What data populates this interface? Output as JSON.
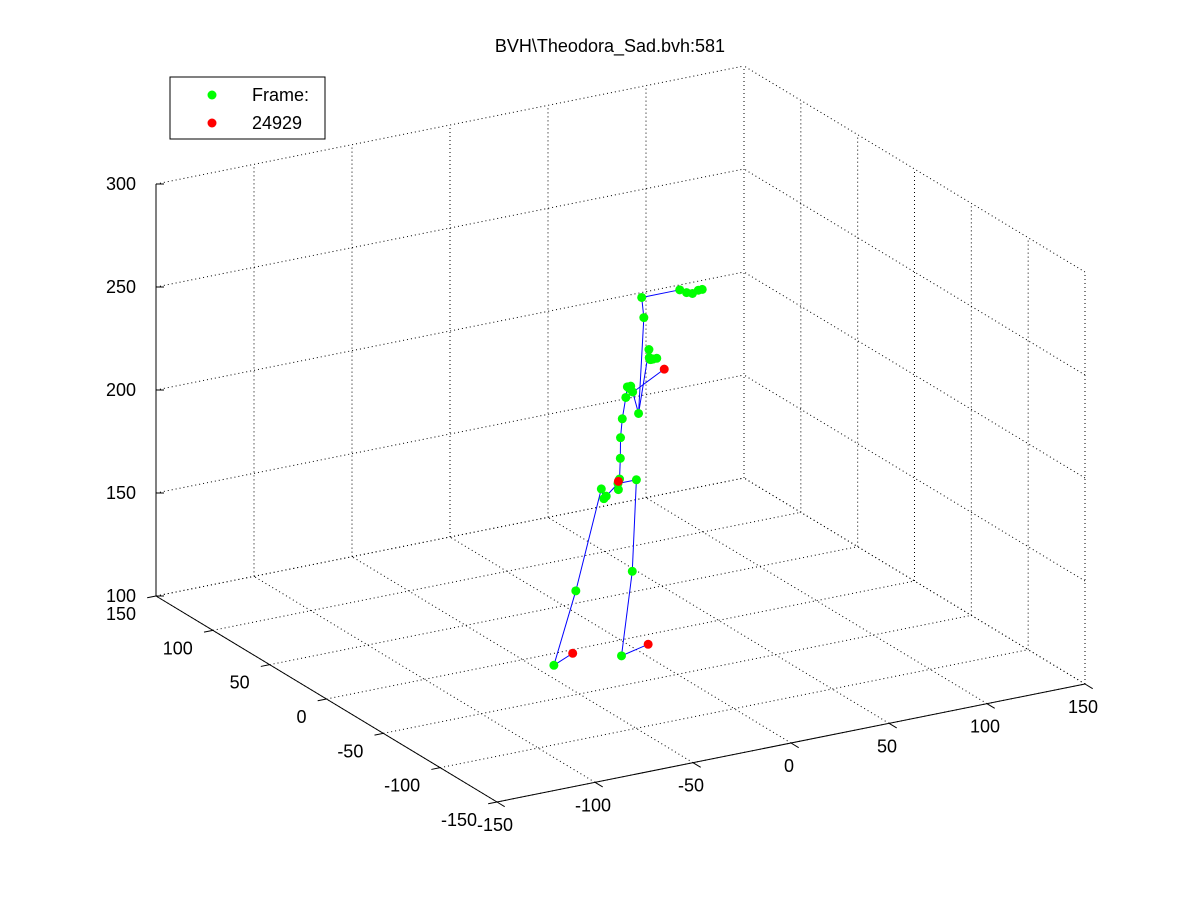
{
  "chart_data": {
    "type": "scatter",
    "title": "BVH\\Theodora_Sad.bvh:581",
    "projection": "3d",
    "grid": true,
    "legend_position": "top-left",
    "xlim": [
      -150,
      150
    ],
    "ylim": [
      -150,
      150
    ],
    "zlim": [
      100,
      300
    ],
    "x_ticks": [
      "-150",
      "-100",
      "-50",
      "0",
      "50",
      "100",
      "150"
    ],
    "y_ticks": [
      "-150",
      "-100",
      "-50",
      "0",
      "50",
      "100",
      "150"
    ],
    "z_ticks": [
      "100",
      "150",
      "200",
      "250",
      "300"
    ],
    "legend": [
      {
        "label": "Frame:",
        "color": "#00ff00"
      },
      {
        "label": "24929",
        "color": "#ff0000"
      }
    ],
    "colors": {
      "joints": "#00ff00",
      "end_sites": "#ff0000",
      "bones": "#0000ff"
    },
    "series": [
      {
        "name": "Frame:",
        "color": "#00ff00",
        "points": [
          {
            "x": -1.0,
            "y": 0.5,
            "z": 176
          },
          {
            "x": -0.8,
            "y": 0.5,
            "z": 173
          },
          {
            "x": -0.2,
            "y": 0.5,
            "z": 178
          },
          {
            "x": 0.2,
            "y": 0.5,
            "z": 188
          },
          {
            "x": 0.3,
            "y": 0.5,
            "z": 198
          },
          {
            "x": 1.2,
            "y": 0.5,
            "z": 207
          },
          {
            "x": 3.0,
            "y": 0.5,
            "z": 217
          },
          {
            "x": 3.8,
            "y": 0.5,
            "z": 222
          },
          {
            "x": 4.8,
            "y": 0.5,
            "z": 221
          },
          {
            "x": 5.5,
            "y": 0.5,
            "z": 222
          },
          {
            "x": 6.5,
            "y": 0.5,
            "z": 219
          },
          {
            "x": 9.5,
            "y": 0.5,
            "z": 208
          },
          {
            "x": 14.8,
            "y": 0.5,
            "z": 238
          },
          {
            "x": 15.0,
            "y": 0.5,
            "z": 234
          },
          {
            "x": 15.0,
            "y": 0.5,
            "z": 234
          },
          {
            "x": 17.0,
            "y": 0.5,
            "z": 233
          },
          {
            "x": 15.5,
            "y": 0.5,
            "z": 233
          },
          {
            "x": 16.1,
            "y": 0.5,
            "z": 233
          },
          {
            "x": 16.6,
            "y": 0.5,
            "z": 233
          },
          {
            "x": 18.8,
            "y": 0.5,
            "z": 233
          },
          {
            "x": 12.2,
            "y": 0.5,
            "z": 254
          },
          {
            "x": 11.1,
            "y": 0.5,
            "z": 264
          },
          {
            "x": 30.5,
            "y": 0.5,
            "z": 264
          },
          {
            "x": 34.0,
            "y": 0.5,
            "z": 262
          },
          {
            "x": 37.0,
            "y": 0.5,
            "z": 261
          },
          {
            "x": 40.0,
            "y": 0.5,
            "z": 262
          },
          {
            "x": 42.0,
            "y": 0.5,
            "z": 262
          },
          {
            "x": -7.0,
            "y": 0.5,
            "z": 171
          },
          {
            "x": -8.2,
            "y": 0.5,
            "z": 170
          },
          {
            "x": -9.5,
            "y": 0.5,
            "z": 175
          },
          {
            "x": -22.5,
            "y": 0.5,
            "z": 128
          },
          {
            "x": -33.7,
            "y": 0.5,
            "z": 94
          },
          {
            "x": 8.4,
            "y": 0.5,
            "z": 176
          },
          {
            "x": 6.3,
            "y": 0.5,
            "z": 132
          },
          {
            "x": 0.8,
            "y": 0.5,
            "z": 92
          }
        ]
      },
      {
        "name": "24929",
        "color": "#ff0000",
        "points": [
          {
            "x": -0.8,
            "y": 0.5,
            "z": 177
          },
          {
            "x": 22.6,
            "y": 0.5,
            "z": 227
          },
          {
            "x": -24.1,
            "y": 0.5,
            "z": 98
          },
          {
            "x": 14.4,
            "y": 0.5,
            "z": 95
          }
        ]
      }
    ],
    "bones": [
      [
        0,
        1
      ],
      [
        1,
        2
      ],
      [
        2,
        3
      ],
      [
        3,
        4
      ],
      [
        4,
        5
      ],
      [
        5,
        6
      ],
      [
        6,
        7
      ],
      [
        7,
        8
      ],
      [
        8,
        9
      ],
      [
        9,
        10
      ],
      [
        10,
        11
      ],
      [
        11,
        12
      ],
      [
        12,
        13
      ],
      [
        13,
        14
      ],
      [
        14,
        15
      ],
      [
        15,
        16
      ],
      [
        16,
        17
      ],
      [
        17,
        18
      ],
      [
        18,
        19
      ],
      [
        11,
        20
      ],
      [
        20,
        21
      ],
      [
        21,
        22
      ],
      [
        22,
        23
      ],
      [
        23,
        24
      ],
      [
        24,
        25
      ],
      [
        25,
        26
      ],
      [
        0,
        27
      ],
      [
        27,
        28
      ],
      [
        28,
        29
      ],
      [
        29,
        30
      ],
      [
        30,
        31
      ],
      [
        0,
        32
      ],
      [
        32,
        33
      ],
      [
        33,
        34
      ],
      [
        6,
        36
      ],
      [
        34,
        38
      ],
      [
        31,
        37
      ],
      [
        35,
        2
      ]
    ]
  }
}
